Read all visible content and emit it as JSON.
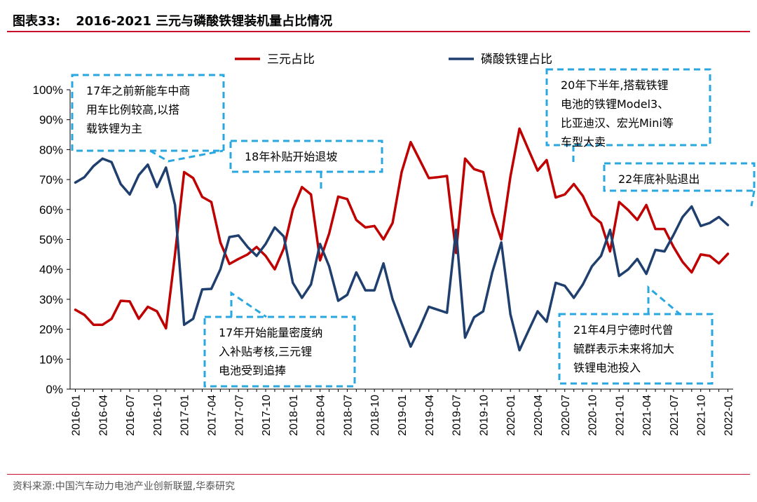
{
  "header": {
    "figure_number": "图表33:",
    "title": "2016-2021 三元与磷酸铁锂装机量占比情况"
  },
  "footer": {
    "source": "资料来源:中国汽车动力电池产业创新联盟,华泰研究"
  },
  "colors": {
    "ternary": "#c00000",
    "lfp": "#1f3f6e",
    "callout": "#29a7e0",
    "title_rule": "#c8102e"
  },
  "chart_data": {
    "type": "line",
    "title": "2016-2021 三元与磷酸铁锂装机量占比情况",
    "xlabel": "",
    "ylabel": "",
    "ylim": [
      0,
      100
    ],
    "y_ticks": [
      "0%",
      "10%",
      "20%",
      "30%",
      "40%",
      "50%",
      "60%",
      "70%",
      "80%",
      "90%",
      "100%"
    ],
    "y_tick_values": [
      0,
      10,
      20,
      30,
      40,
      50,
      60,
      70,
      80,
      90,
      100
    ],
    "x_tick_labels": [
      "2016-01",
      "2016-04",
      "2016-07",
      "2016-10",
      "2017-01",
      "2017-04",
      "2017-07",
      "2017-10",
      "2018-01",
      "2018-04",
      "2018-07",
      "2018-10",
      "2019-01",
      "2019-04",
      "2019-07",
      "2019-10",
      "2020-01",
      "2020-04",
      "2020-07",
      "2020-10",
      "2021-01",
      "2021-04",
      "2021-07",
      "2021-10",
      "2022-01"
    ],
    "legend_position": "top",
    "x": [
      "2016-01",
      "2016-02",
      "2016-03",
      "2016-04",
      "2016-05",
      "2016-06",
      "2016-07",
      "2016-08",
      "2016-09",
      "2016-10",
      "2016-11",
      "2016-12",
      "2017-01",
      "2017-02",
      "2017-03",
      "2017-04",
      "2017-05",
      "2017-06",
      "2017-07",
      "2017-08",
      "2017-09",
      "2017-10",
      "2017-11",
      "2017-12",
      "2018-01",
      "2018-02",
      "2018-03",
      "2018-04",
      "2018-05",
      "2018-06",
      "2018-07",
      "2018-08",
      "2018-09",
      "2018-10",
      "2018-11",
      "2018-12",
      "2019-01",
      "2019-02",
      "2019-03",
      "2019-04",
      "2019-05",
      "2019-06",
      "2019-07",
      "2019-08",
      "2019-09",
      "2019-10",
      "2019-11",
      "2019-12",
      "2020-01",
      "2020-02",
      "2020-03",
      "2020-04",
      "2020-05",
      "2020-06",
      "2020-07",
      "2020-08",
      "2020-09",
      "2020-10",
      "2020-11",
      "2020-12",
      "2021-01",
      "2021-02",
      "2021-03",
      "2021-04",
      "2021-05",
      "2021-06",
      "2021-07",
      "2021-08",
      "2021-09",
      "2021-10",
      "2021-11",
      "2021-12",
      "2022-01"
    ],
    "series": [
      {
        "name": "三元占比",
        "color": "#c00000",
        "values": [
          26.5,
          24.8,
          21.5,
          21.5,
          23.5,
          29.5,
          29.3,
          23.5,
          27.5,
          26.0,
          20.3,
          45.0,
          72.5,
          70.5,
          64.2,
          62.5,
          49.0,
          41.8,
          43.5,
          45.0,
          47.5,
          44.5,
          40.0,
          47.0,
          60.0,
          67.5,
          65.0,
          43.0,
          52.0,
          64.3,
          63.5,
          56.5,
          54.0,
          54.5,
          50.0,
          55.5,
          72.5,
          82.5,
          76.5,
          70.5,
          70.8,
          71.2,
          45.5,
          77.0,
          73.5,
          72.5,
          59.0,
          50.0,
          71.0,
          87.0,
          80.0,
          73.0,
          76.5,
          64.0,
          65.0,
          68.5,
          64.5,
          58.0,
          55.5,
          46.0,
          62.5,
          59.8,
          56.5,
          61.5,
          53.5,
          53.5,
          47.5,
          42.5,
          39.0,
          45.0,
          44.5,
          42.0,
          45.2
        ]
      },
      {
        "name": "磷酸铁锂占比",
        "color": "#1f3f6e",
        "values": [
          69.0,
          70.8,
          74.5,
          77.0,
          75.8,
          68.5,
          65.0,
          71.5,
          75.0,
          67.5,
          74.0,
          61.5,
          21.5,
          23.5,
          33.3,
          33.5,
          40.0,
          50.8,
          51.3,
          47.5,
          44.5,
          48.5,
          54.0,
          51.0,
          35.5,
          30.5,
          35.0,
          48.5,
          41.0,
          29.5,
          31.5,
          39.0,
          33.0,
          33.0,
          42.0,
          30.0,
          22.0,
          14.2,
          20.5,
          27.5,
          26.5,
          25.5,
          53.2,
          17.2,
          24.0,
          26.0,
          39.0,
          49.0,
          25.0,
          13.0,
          19.5,
          26.0,
          22.5,
          35.5,
          34.5,
          30.5,
          35.0,
          41.0,
          44.5,
          53.2,
          37.8,
          40.0,
          43.5,
          38.5,
          46.5,
          46.0,
          51.5,
          57.5,
          61.0,
          54.5,
          55.5,
          57.5,
          54.8
        ]
      }
    ],
    "annotations": [
      "17年之前新能车中商用车比例较高,以搭载铁锂为主",
      "18年补贴开始退坡",
      "20年下半年,搭载铁锂电池的铁锂Model3、比亚迪汉、宏光Mini等车型大卖",
      "22年底补贴退出",
      "17年开始能量密度纳入补贴考核,三元锂电池受到追捧",
      "21年4月宁德时代曾毓群表示未来将加大铁锂电池投入"
    ]
  }
}
